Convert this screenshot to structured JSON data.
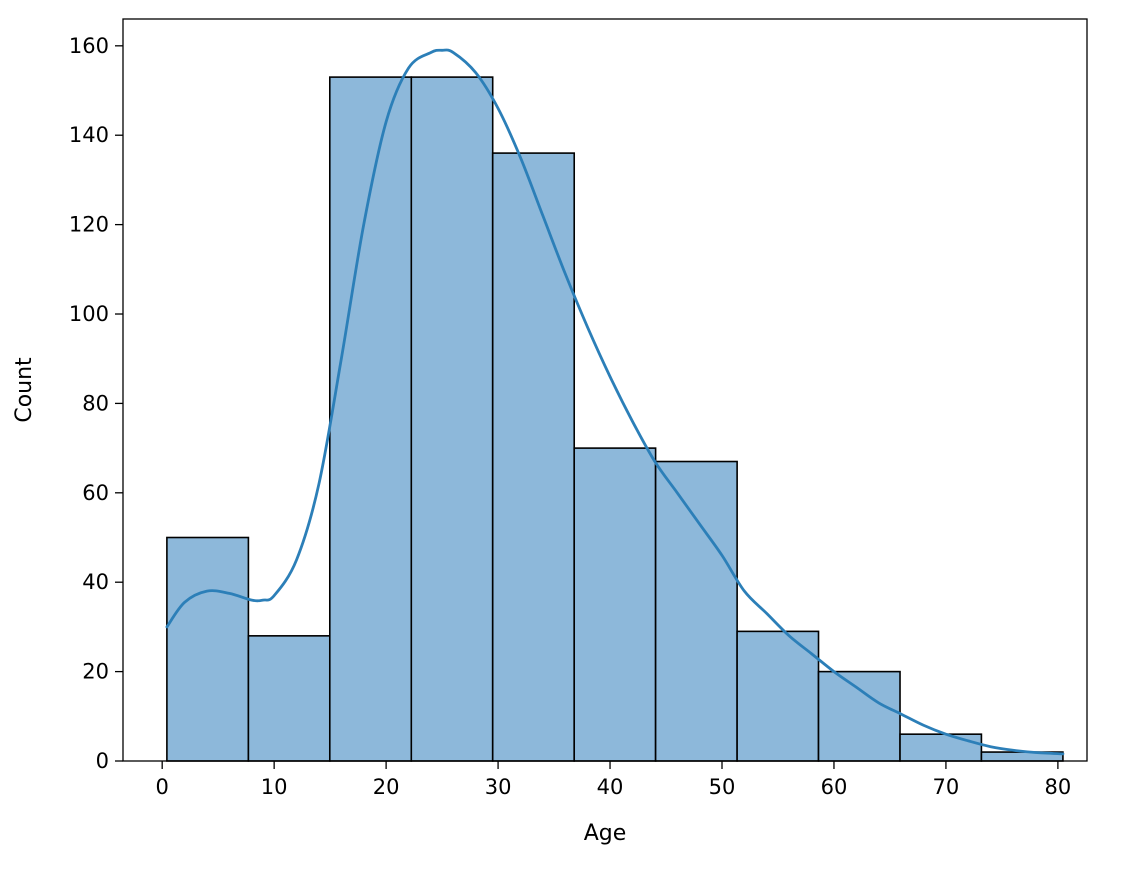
{
  "chart_data": {
    "type": "bar",
    "subtype": "histogram-with-kde",
    "title": "",
    "xlabel": "Age",
    "ylabel": "Count",
    "xlim": [
      -3.5,
      82.6
    ],
    "ylim": [
      0,
      166
    ],
    "xticks": [
      0,
      10,
      20,
      30,
      40,
      50,
      60,
      70,
      80
    ],
    "yticks": [
      0,
      20,
      40,
      60,
      80,
      100,
      120,
      140,
      160
    ],
    "grid": false,
    "legend": "none",
    "bins": [
      {
        "x0": 0.42,
        "x1": 7.7,
        "count": 50
      },
      {
        "x0": 7.7,
        "x1": 14.97,
        "count": 28
      },
      {
        "x0": 14.97,
        "x1": 22.25,
        "count": 153
      },
      {
        "x0": 22.25,
        "x1": 29.52,
        "count": 153
      },
      {
        "x0": 29.52,
        "x1": 36.8,
        "count": 136
      },
      {
        "x0": 36.8,
        "x1": 44.07,
        "count": 70
      },
      {
        "x0": 44.07,
        "x1": 51.35,
        "count": 67
      },
      {
        "x0": 51.35,
        "x1": 58.62,
        "count": 29
      },
      {
        "x0": 58.62,
        "x1": 65.9,
        "count": 20
      },
      {
        "x0": 65.9,
        "x1": 73.17,
        "count": 6
      },
      {
        "x0": 73.17,
        "x1": 80.45,
        "count": 2
      }
    ],
    "kde": {
      "x": [
        0.42,
        2,
        4,
        6,
        8,
        9,
        10,
        12,
        14,
        16,
        18,
        20,
        22,
        24,
        25,
        26,
        28,
        30,
        32,
        34,
        36,
        38,
        40,
        42,
        44,
        46,
        48,
        50,
        52,
        54,
        56,
        58,
        60,
        62,
        64,
        66,
        68,
        70,
        72,
        74,
        76,
        78,
        80.45
      ],
      "y": [
        30,
        35.5,
        38,
        37.5,
        36,
        36,
        37,
        45,
        62,
        90,
        120,
        143,
        155,
        158.5,
        159,
        158.5,
        154,
        146,
        135,
        122,
        109,
        97,
        86,
        76,
        67,
        60,
        53,
        46,
        38,
        33,
        28,
        24,
        20,
        16.5,
        13,
        10.5,
        8,
        6,
        4.5,
        3.2,
        2.4,
        1.9,
        1.6
      ]
    },
    "colors": {
      "bar_fill": "#8db8da",
      "bar_edge": "#000000",
      "kde_line": "#2c7fb8"
    }
  }
}
